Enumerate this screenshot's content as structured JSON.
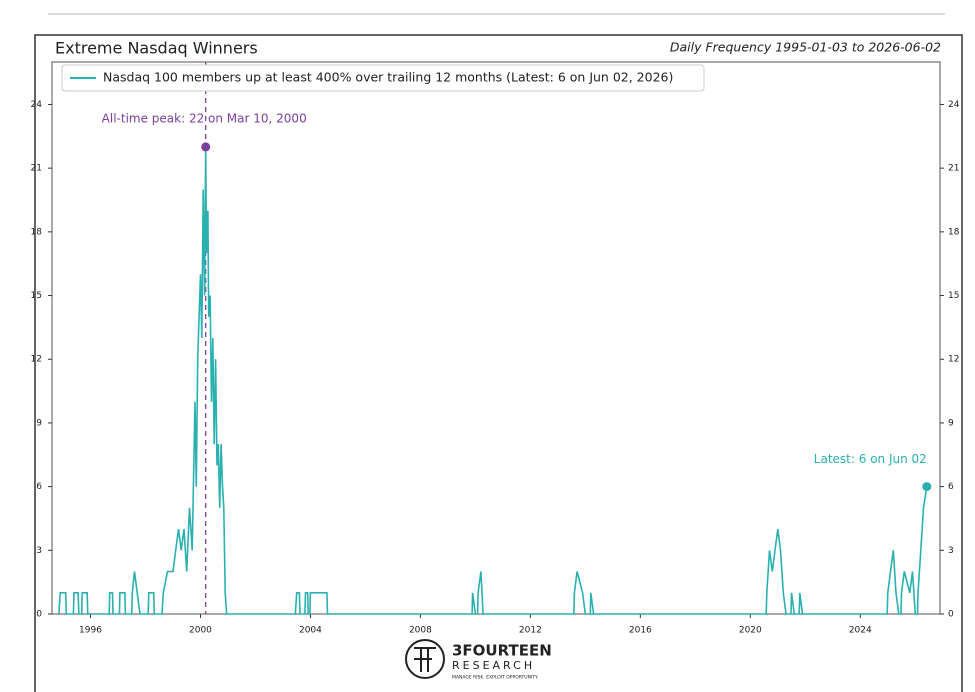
{
  "chart_data": {
    "type": "line",
    "title": "Extreme Nasdaq Winners",
    "subtitle": "Daily Frequency 1995-01-03 to 2026-06-02",
    "series": [
      {
        "name": "Nasdaq 100 members up at least 400% over trailing 12 months (Latest: 6 on Jun 02, 2026)",
        "color": "#2bb0b0",
        "x": [
          1994.85,
          1994.9,
          1995.1,
          1995.12,
          1995.38,
          1995.4,
          1995.55,
          1995.58,
          1995.68,
          1995.7,
          1995.88,
          1995.9,
          1996.68,
          1996.7,
          1996.8,
          1996.82,
          1997.05,
          1997.07,
          1997.25,
          1997.27,
          1997.5,
          1997.52,
          1997.6,
          1997.7,
          1997.8,
          1998.1,
          1998.12,
          1998.3,
          1998.32,
          1998.6,
          1998.65,
          1998.8,
          1999.0,
          1999.1,
          1999.2,
          1999.3,
          1999.4,
          1999.5,
          1999.6,
          1999.7,
          1999.8,
          1999.85,
          1999.9,
          2000.0,
          2000.05,
          2000.1,
          2000.15,
          2000.19,
          2000.22,
          2000.27,
          2000.3,
          2000.35,
          2000.4,
          2000.45,
          2000.5,
          2000.55,
          2000.6,
          2000.65,
          2000.7,
          2000.75,
          2000.8,
          2000.85,
          2000.9,
          2000.95,
          2003.45,
          2003.5,
          2003.6,
          2003.62,
          2003.8,
          2003.82,
          2003.9,
          2003.92,
          2003.98,
          2004.0,
          2004.6,
          2004.62,
          2009.88,
          2009.9,
          2010.0,
          2010.08,
          2010.1,
          2010.2,
          2010.28,
          2013.58,
          2013.6,
          2013.7,
          2013.9,
          2014.0,
          2014.18,
          2014.2,
          2014.3,
          2020.58,
          2020.6,
          2020.7,
          2020.8,
          2020.9,
          2021.0,
          2021.1,
          2021.2,
          2021.3,
          2021.48,
          2021.5,
          2021.6,
          2021.78,
          2021.8,
          2021.9,
          2024.98,
          2025.0,
          2025.1,
          2025.2,
          2025.3,
          2025.4,
          2025.48,
          2025.5,
          2025.6,
          2025.8,
          2025.9,
          2026.0,
          2026.08,
          2026.1,
          2026.2,
          2026.3,
          2026.42
        ],
        "values": [
          0,
          1,
          1,
          0,
          0,
          1,
          1,
          0,
          0,
          1,
          1,
          0,
          0,
          1,
          1,
          0,
          0,
          1,
          1,
          0,
          0,
          1,
          2,
          1,
          0,
          0,
          1,
          1,
          0,
          0,
          1,
          2,
          2,
          3,
          4,
          3,
          4,
          2,
          5,
          3,
          10,
          6,
          12,
          16,
          13,
          20,
          15,
          22,
          17,
          19,
          14,
          15,
          10,
          13,
          8,
          12,
          7,
          8,
          5,
          8,
          6,
          5,
          1,
          0,
          0,
          1,
          1,
          0,
          0,
          1,
          1,
          0,
          0,
          1,
          1,
          0,
          0,
          1,
          0,
          0,
          1,
          2,
          0,
          0,
          1,
          2,
          1,
          0,
          0,
          1,
          0,
          0,
          1,
          3,
          2,
          3,
          4,
          3,
          1,
          0,
          0,
          1,
          0,
          0,
          1,
          0,
          0,
          1,
          2,
          3,
          1,
          0,
          0,
          1,
          2,
          1,
          2,
          0,
          0,
          1,
          3,
          5,
          6
        ]
      }
    ],
    "peak": {
      "x": 2000.19,
      "y": 22,
      "label": "All-time peak: 22 on Mar 10, 2000",
      "color": "#7b3f9e"
    },
    "latest": {
      "x": 2026.42,
      "y": 6,
      "label": "Latest: 6 on Jun 02"
    },
    "xlim": [
      1994.6,
      2026.9
    ],
    "xticks": [
      1996,
      2000,
      2004,
      2008,
      2012,
      2016,
      2020,
      2024
    ],
    "ylim": [
      0,
      26
    ],
    "yticks": [
      0,
      3,
      6,
      9,
      12,
      15,
      18,
      21,
      24
    ],
    "logo": {
      "name": "3FOURTEEN",
      "sub": "RESEARCH",
      "tagline": "MANAGE RISK. EXPLOIT OPPORTUNITY."
    }
  }
}
